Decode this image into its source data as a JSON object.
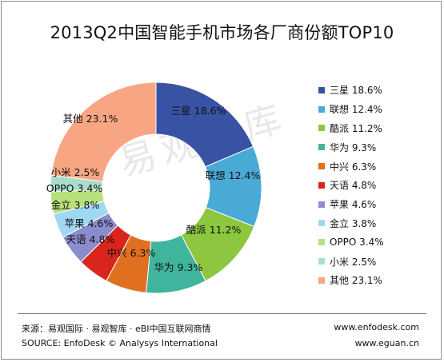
{
  "chart_data": {
    "type": "pie",
    "title": "2013Q2中国智能手机市场各厂商份额TOP10",
    "legend_position": "right",
    "slices": [
      {
        "label": "三星",
        "value": 18.6,
        "display": "18.6%",
        "color": "#3953a4"
      },
      {
        "label": "联想",
        "value": 12.4,
        "display": "12.4%",
        "color": "#4aaad6"
      },
      {
        "label": "酷派",
        "value": 11.2,
        "display": "11.2%",
        "color": "#8dc63f"
      },
      {
        "label": "华为",
        "value": 9.3,
        "display": "9.3%",
        "color": "#40b59d"
      },
      {
        "label": "中兴",
        "value": 6.3,
        "display": "6.3%",
        "color": "#e0701f"
      },
      {
        "label": "天语",
        "value": 4.8,
        "display": "4.8%",
        "color": "#d9261c"
      },
      {
        "label": "苹果",
        "value": 4.6,
        "display": "4.6%",
        "color": "#8a8ccc"
      },
      {
        "label": "金立",
        "value": 3.8,
        "display": "3.8%",
        "color": "#9fd8f3"
      },
      {
        "label": "OPPO",
        "value": 3.4,
        "display": "3.4%",
        "color": "#b7e07a"
      },
      {
        "label": "小米",
        "value": 2.5,
        "display": "2.5%",
        "color": "#a8dccb"
      },
      {
        "label": "其他",
        "value": 23.1,
        "display": "23.1%",
        "color": "#f7a582"
      }
    ]
  },
  "watermark": "易观智库",
  "footer": {
    "source_cn": "来源：易观国际 · 易观智库 · eBI中国互联网商情",
    "source_en": "SOURCE: EnfoDesk © Analysys International",
    "url1": "www.enfodesk.com",
    "url2": "www.eguan.cn"
  }
}
